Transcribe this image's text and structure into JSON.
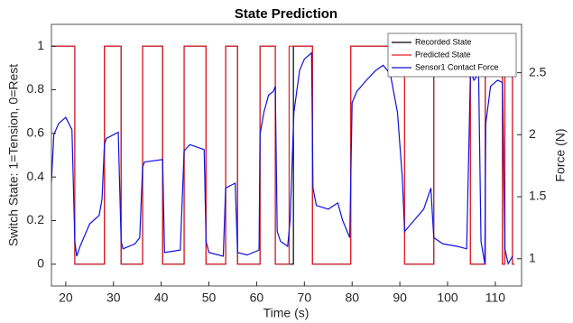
{
  "chart_data": {
    "type": "line",
    "title": "State Prediction",
    "x_label": "Time (s)",
    "y_label": "Switch State: 1=Tension, 0=Rest",
    "y2_label": "Force (N)",
    "xlim": [
      17,
      115.5
    ],
    "xticks": [
      20,
      30,
      40,
      50,
      60,
      70,
      80,
      90,
      100,
      110
    ],
    "ylim": [
      -0.1,
      1.1
    ],
    "yticks": [
      0,
      0.2,
      0.4,
      0.6,
      0.8,
      1
    ],
    "y2lim": [
      0.78,
      2.89
    ],
    "y2ticks": [
      1,
      1.5,
      2,
      2.5
    ],
    "grid": false,
    "legend": "upper right",
    "series": [
      {
        "name": "Recorded State",
        "color": "#000000",
        "x": [
          17,
          21.9,
          21.9,
          28.1,
          28.1,
          31.6,
          31.6,
          36.1,
          36.1,
          40.3,
          40.3,
          44.8,
          44.8,
          49.4,
          49.4,
          53.5,
          53.5,
          56,
          56,
          60.7,
          60.7,
          63.9,
          63.9,
          67.7,
          67.7,
          71.7,
          71.7,
          79.7,
          79.7,
          91,
          91,
          97.1,
          97.1,
          104.8,
          104.8,
          107.9,
          107.9,
          111.5,
          111.5,
          112,
          112,
          113.6,
          113.6,
          114
        ],
        "values": [
          1,
          1,
          0,
          0,
          1,
          1,
          0,
          0,
          1,
          1,
          0,
          0,
          1,
          1,
          0,
          0,
          1,
          1,
          0,
          0,
          1,
          1,
          0,
          0,
          1,
          1,
          0,
          0,
          1,
          1,
          0,
          0,
          1,
          1,
          0,
          0,
          1,
          1,
          0,
          0,
          1,
          1,
          0,
          0
        ]
      },
      {
        "name": "Predicted State",
        "color": "#e8202a",
        "x": [
          17,
          21.9,
          21.9,
          28.1,
          28.1,
          31.6,
          31.6,
          36.1,
          36.1,
          40.3,
          40.3,
          44.8,
          44.8,
          49.4,
          49.4,
          53.5,
          53.5,
          56,
          56,
          60.7,
          60.7,
          63.9,
          63.9,
          66.8,
          66.8,
          71.7,
          71.7,
          79.7,
          79.7,
          91,
          91,
          97.1,
          97.1,
          104.8,
          104.8,
          107.9,
          107.9,
          111.5,
          111.5,
          112,
          112,
          113.6,
          113.6,
          114
        ],
        "values": [
          1,
          1,
          0,
          0,
          1,
          1,
          0,
          0,
          1,
          1,
          0,
          0,
          1,
          1,
          0,
          0,
          1,
          1,
          0,
          0,
          1,
          1,
          0,
          0,
          1,
          1,
          0,
          0,
          1,
          1,
          0,
          0,
          1,
          1,
          0,
          0,
          1,
          1,
          0,
          0,
          1,
          1,
          0,
          0
        ]
      },
      {
        "name": "Sensor1 Contact Force",
        "color": "#1010e0",
        "axis": "y2",
        "x": [
          17,
          17.5,
          18.5,
          20,
          21.3,
          21.9,
          22.3,
          23,
          25,
          27,
          27.6,
          28.1,
          28.5,
          31,
          31.6,
          32,
          34.5,
          35.5,
          36.1,
          36.5,
          40.3,
          40.7,
          44,
          44.8,
          46,
          49,
          49.4,
          50,
          53,
          53.5,
          55.5,
          56,
          58,
          60.5,
          60.7,
          61.5,
          62.5,
          63.5,
          63.9,
          64.3,
          65,
          66.5,
          67,
          67.8,
          69,
          70,
          71.5,
          71.8,
          72.5,
          75,
          77,
          78,
          79.5,
          80,
          81,
          83,
          85,
          86.5,
          88,
          89.5,
          90.5,
          91,
          93,
          95,
          96.5,
          97.1,
          99,
          102,
          104,
          104.8,
          105.5,
          106.5,
          107,
          107.8,
          108,
          109,
          110.5,
          111.5,
          112,
          112.7,
          113.6
        ],
        "values": [
          1.62,
          2.0,
          2.09,
          2.14,
          2.04,
          1.14,
          1.02,
          1.1,
          1.28,
          1.35,
          1.48,
          1.92,
          1.97,
          2.02,
          1.14,
          1.08,
          1.12,
          1.17,
          1.74,
          1.78,
          1.8,
          1.05,
          1.07,
          1.87,
          1.92,
          1.88,
          1.14,
          1.05,
          1.02,
          1.57,
          1.61,
          1.05,
          1.03,
          1.07,
          2.0,
          2.18,
          2.32,
          2.35,
          2.39,
          1.22,
          1.14,
          1.1,
          1.31,
          2.18,
          2.52,
          2.61,
          2.66,
          1.57,
          1.43,
          1.4,
          1.45,
          1.31,
          1.17,
          2.26,
          2.35,
          2.44,
          2.52,
          2.56,
          2.49,
          2.18,
          1.66,
          1.22,
          1.31,
          1.4,
          1.57,
          1.17,
          1.12,
          1.1,
          1.08,
          2.52,
          2.44,
          2.49,
          1.14,
          0.96,
          2.09,
          2.39,
          2.44,
          2.42,
          1.08,
          0.96,
          1.02
        ]
      }
    ]
  }
}
